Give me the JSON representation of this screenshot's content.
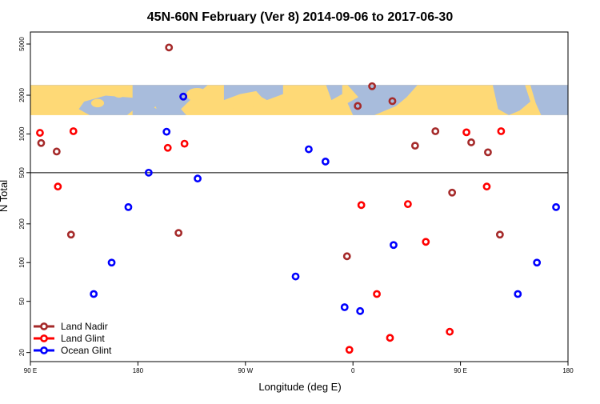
{
  "chart_data": {
    "type": "scatter",
    "title": "45N-60N February (Ver 8)   2014-09-06 to 2017-06-30",
    "xlabel": "Longitude (deg E)",
    "ylabel": "N Total",
    "x_axis": {
      "ticks": [
        {
          "value": 90,
          "label": "90 E"
        },
        {
          "value": 180,
          "label": "180"
        },
        {
          "value": 270,
          "label": "90 W"
        },
        {
          "value": 360,
          "label": "0"
        },
        {
          "value": 450,
          "label": "90 E"
        },
        {
          "value": 540,
          "label": "180"
        }
      ],
      "xlim": [
        90,
        540
      ]
    },
    "y_axis": {
      "scale": "log",
      "ticks": [
        {
          "value": 20,
          "label": "20"
        },
        {
          "value": 50,
          "label": "50"
        },
        {
          "value": 100,
          "label": "100"
        },
        {
          "value": 200,
          "label": "200"
        },
        {
          "value": 500,
          "label": "500"
        },
        {
          "value": 1000,
          "label": "1000"
        },
        {
          "value": 2000,
          "label": "2000"
        },
        {
          "value": 5000,
          "label": "5000"
        }
      ],
      "ylim": [
        17,
        6200
      ],
      "reference_line": 500
    },
    "map_band": {
      "y_range": [
        1400,
        2400
      ],
      "land_color": "#fed976",
      "ocean_color": "#a8bcdc"
    },
    "legend_position": "bottom-left",
    "series": [
      {
        "name": "Land Nadir",
        "color": "#a52a2a",
        "points": [
          {
            "x": 99,
            "y": 850
          },
          {
            "x": 112,
            "y": 730
          },
          {
            "x": 124,
            "y": 165
          },
          {
            "x": 206,
            "y": 4700
          },
          {
            "x": 218,
            "y": 1950
          },
          {
            "x": 214,
            "y": 170
          },
          {
            "x": 355,
            "y": 112
          },
          {
            "x": 364,
            "y": 1650
          },
          {
            "x": 376,
            "y": 2350
          },
          {
            "x": 393,
            "y": 1800
          },
          {
            "x": 412,
            "y": 810
          },
          {
            "x": 429,
            "y": 1050
          },
          {
            "x": 443,
            "y": 350
          },
          {
            "x": 459,
            "y": 860
          },
          {
            "x": 473,
            "y": 720
          },
          {
            "x": 483,
            "y": 165
          }
        ]
      },
      {
        "name": "Land Glint",
        "color": "#ff0000",
        "points": [
          {
            "x": 98,
            "y": 1020
          },
          {
            "x": 113,
            "y": 390
          },
          {
            "x": 126,
            "y": 1050
          },
          {
            "x": 205,
            "y": 780
          },
          {
            "x": 219,
            "y": 840
          },
          {
            "x": 357,
            "y": 21
          },
          {
            "x": 367,
            "y": 280
          },
          {
            "x": 380,
            "y": 57
          },
          {
            "x": 391,
            "y": 26
          },
          {
            "x": 406,
            "y": 285
          },
          {
            "x": 421,
            "y": 145
          },
          {
            "x": 441,
            "y": 29
          },
          {
            "x": 455,
            "y": 1030
          },
          {
            "x": 472,
            "y": 390
          },
          {
            "x": 484,
            "y": 1050
          }
        ]
      },
      {
        "name": "Ocean Glint",
        "color": "#0000ff",
        "points": [
          {
            "x": 143,
            "y": 57
          },
          {
            "x": 158,
            "y": 100
          },
          {
            "x": 172,
            "y": 270
          },
          {
            "x": 189,
            "y": 500
          },
          {
            "x": 204,
            "y": 1040
          },
          {
            "x": 218,
            "y": 1950
          },
          {
            "x": 230,
            "y": 450
          },
          {
            "x": 312,
            "y": 78
          },
          {
            "x": 323,
            "y": 760
          },
          {
            "x": 337,
            "y": 610
          },
          {
            "x": 353,
            "y": 45
          },
          {
            "x": 366,
            "y": 42
          },
          {
            "x": 394,
            "y": 137
          },
          {
            "x": 498,
            "y": 57
          },
          {
            "x": 514,
            "y": 100
          },
          {
            "x": 530,
            "y": 270
          }
        ]
      }
    ]
  }
}
